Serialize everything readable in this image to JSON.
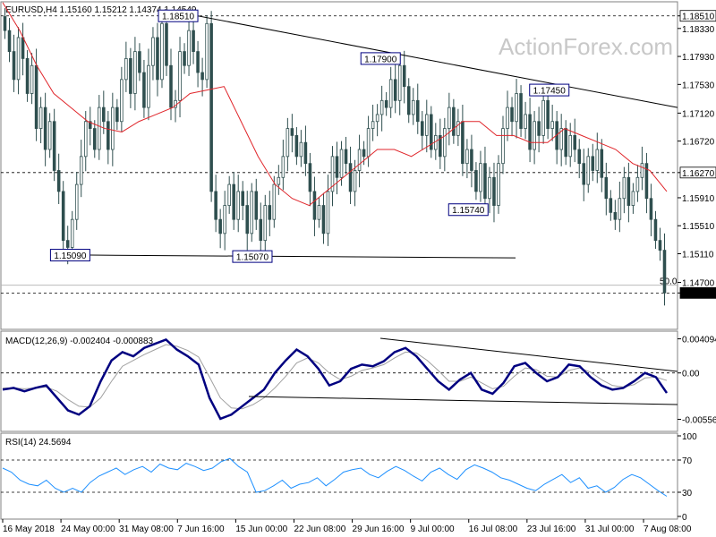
{
  "chart_data": [
    {
      "type": "candlestick",
      "title": "EURUSD,H4  1.15160 1.15212 1.14374 1.14549",
      "watermark": "ActionForex.com",
      "ylim": [
        1.1408,
        1.1866
      ],
      "y_ticks": [
        "1.18510",
        "1.18330",
        "1.17930",
        "1.17530",
        "1.17120",
        "1.16720",
        "1.16270",
        "1.15910",
        "1.15510",
        "1.15110",
        "1.14700",
        "1.14549"
      ],
      "x_ticks": [
        "16 May 2018",
        "24 May 00:00",
        "31 May 08:00",
        "7 Jun 16:00",
        "15 Jun 00:00",
        "22 Jun 08:00",
        "29 Jun 16:00",
        "9 Jul 00:00",
        "16 Jul 08:00",
        "23 Jul 16:00",
        "31 Jul 00:00",
        "7 Aug 08:00"
      ],
      "price_labels": [
        "1.18510",
        "1.17900",
        "1.17450",
        "1.15740",
        "1.15090",
        "1.15070"
      ],
      "horizontal_levels": [
        "1.18510",
        "1.16270",
        "1.14549"
      ],
      "fib_label": "50.0",
      "closes": [
        1.183,
        1.18,
        1.176,
        1.182,
        1.179,
        1.174,
        1.178,
        1.169,
        1.172,
        1.166,
        1.17,
        1.163,
        1.16,
        1.153,
        1.152,
        1.156,
        1.161,
        1.165,
        1.17,
        1.169,
        1.166,
        1.172,
        1.17,
        1.166,
        1.172,
        1.17,
        1.176,
        1.179,
        1.174,
        1.18,
        1.177,
        1.172,
        1.178,
        1.182,
        1.176,
        1.184,
        1.178,
        1.172,
        1.173,
        1.18,
        1.178,
        1.183,
        1.18,
        1.177,
        1.176,
        1.184,
        1.16,
        1.156,
        1.154,
        1.158,
        1.161,
        1.156,
        1.16,
        1.158,
        1.154,
        1.16,
        1.156,
        1.153,
        1.158,
        1.156,
        1.161,
        1.162,
        1.165,
        1.169,
        1.168,
        1.165,
        1.167,
        1.164,
        1.16,
        1.156,
        1.158,
        1.154,
        1.16,
        1.165,
        1.162,
        1.166,
        1.164,
        1.16,
        1.163,
        1.166,
        1.165,
        1.169,
        1.17,
        1.171,
        1.173,
        1.172,
        1.176,
        1.173,
        1.178,
        1.175,
        1.171,
        1.173,
        1.17,
        1.168,
        1.171,
        1.166,
        1.168,
        1.165,
        1.169,
        1.172,
        1.168,
        1.17,
        1.164,
        1.166,
        1.163,
        1.16,
        1.164,
        1.159,
        1.162,
        1.158,
        1.164,
        1.169,
        1.172,
        1.17,
        1.174,
        1.169,
        1.171,
        1.166,
        1.17,
        1.168,
        1.173,
        1.169,
        1.17,
        1.166,
        1.169,
        1.165,
        1.168,
        1.166,
        1.164,
        1.161,
        1.165,
        1.163,
        1.166,
        1.162,
        1.159,
        1.157,
        1.156,
        1.159,
        1.162,
        1.158,
        1.16,
        1.162,
        1.164,
        1.159,
        1.156,
        1.153,
        1.1516,
        1.1455
      ],
      "ma_label": "SMA",
      "ma_values": [
        1.187,
        1.183,
        1.178,
        1.174,
        1.172,
        1.17,
        1.169,
        1.1685,
        1.17,
        1.171,
        1.172,
        1.174,
        1.1745,
        1.175,
        1.17,
        1.165,
        1.161,
        1.159,
        1.158,
        1.16,
        1.162,
        1.164,
        1.166,
        1.166,
        1.165,
        1.1665,
        1.168,
        1.17,
        1.17,
        1.168,
        1.168,
        1.167,
        1.167,
        1.169,
        1.168,
        1.167,
        1.166,
        1.164,
        1.163,
        1.16
      ],
      "annotation_lines": [
        {
          "name": "upper-trendline",
          "from": {
            "x": 0.24,
            "y": 1.186
          },
          "to": {
            "x": 1.0,
            "y": 1.172
          }
        },
        {
          "name": "lower-support",
          "from": {
            "x": 0.13,
            "y": 1.1509
          },
          "to": {
            "x": 0.76,
            "y": 1.1505
          }
        }
      ]
    },
    {
      "type": "line",
      "title": "MACD(12,26,9) -0.002404 -0.000883",
      "ylim": [
        -0.0068,
        0.0048
      ],
      "y_ticks": [
        "0.004094",
        "0.00",
        "-0.005568"
      ],
      "macd": [
        -0.002,
        -0.0018,
        -0.0022,
        -0.0018,
        -0.0015,
        -0.003,
        -0.0045,
        -0.005,
        -0.004,
        -0.001,
        0.0015,
        0.0025,
        0.002,
        0.003,
        0.0035,
        0.004,
        0.0028,
        0.002,
        0.001,
        -0.003,
        -0.0055,
        -0.005,
        -0.004,
        -0.003,
        -0.002,
        0.0,
        0.0015,
        0.0028,
        0.002,
        0.0005,
        -0.0015,
        -0.001,
        0.0005,
        0.001,
        0.0008,
        0.0014,
        0.0025,
        0.003,
        0.002,
        0.0005,
        -0.001,
        -0.002,
        -0.0008,
        0.0,
        -0.002,
        -0.0025,
        -0.0012,
        0.0008,
        0.0012,
        0.0,
        -0.001,
        -0.0005,
        0.001,
        0.0008,
        -0.0005,
        -0.0015,
        -0.002,
        -0.0018,
        -0.001,
        0.0,
        -0.0005,
        -0.0024
      ],
      "signal": [
        -0.0018,
        -0.0018,
        -0.0019,
        -0.0018,
        -0.0017,
        -0.0022,
        -0.0032,
        -0.004,
        -0.0041,
        -0.003,
        -0.001,
        0.0008,
        0.0015,
        0.0022,
        0.0028,
        0.0034,
        0.0032,
        0.0027,
        0.0019,
        -0.0005,
        -0.003,
        -0.0042,
        -0.0043,
        -0.0038,
        -0.003,
        -0.0018,
        -0.0004,
        0.0012,
        0.0018,
        0.0012,
        0.0,
        -0.0008,
        -0.0004,
        0.0003,
        0.0006,
        0.001,
        0.0018,
        0.0025,
        0.0024,
        0.0015,
        0.0003,
        -0.001,
        -0.001,
        -0.0005,
        -0.0012,
        -0.0019,
        -0.0016,
        -0.0004,
        0.0006,
        0.0004,
        -0.0004,
        -0.0005,
        0.0003,
        0.0006,
        0.0001,
        -0.0008,
        -0.0015,
        -0.0017,
        -0.0014,
        -0.0006,
        -0.0005,
        -0.0009
      ]
    },
    {
      "type": "line",
      "title": "RSI(14) 24.5694",
      "ylim": [
        0,
        100
      ],
      "y_ticks": [
        "100",
        "70",
        "30",
        "0"
      ],
      "levels": [
        70,
        30
      ],
      "rsi": [
        60,
        55,
        45,
        40,
        38,
        45,
        35,
        30,
        35,
        30,
        42,
        50,
        55,
        60,
        52,
        58,
        62,
        55,
        65,
        60,
        58,
        66,
        62,
        57,
        60,
        68,
        72,
        62,
        55,
        30,
        32,
        38,
        45,
        35,
        40,
        42,
        48,
        38,
        46,
        55,
        58,
        60,
        52,
        48,
        56,
        62,
        57,
        50,
        44,
        55,
        60,
        52,
        46,
        58,
        64,
        60,
        55,
        48,
        45,
        40,
        35,
        32,
        40,
        46,
        52,
        42,
        48,
        35,
        38,
        30,
        36,
        46,
        52,
        48,
        40,
        32,
        25
      ]
    }
  ]
}
